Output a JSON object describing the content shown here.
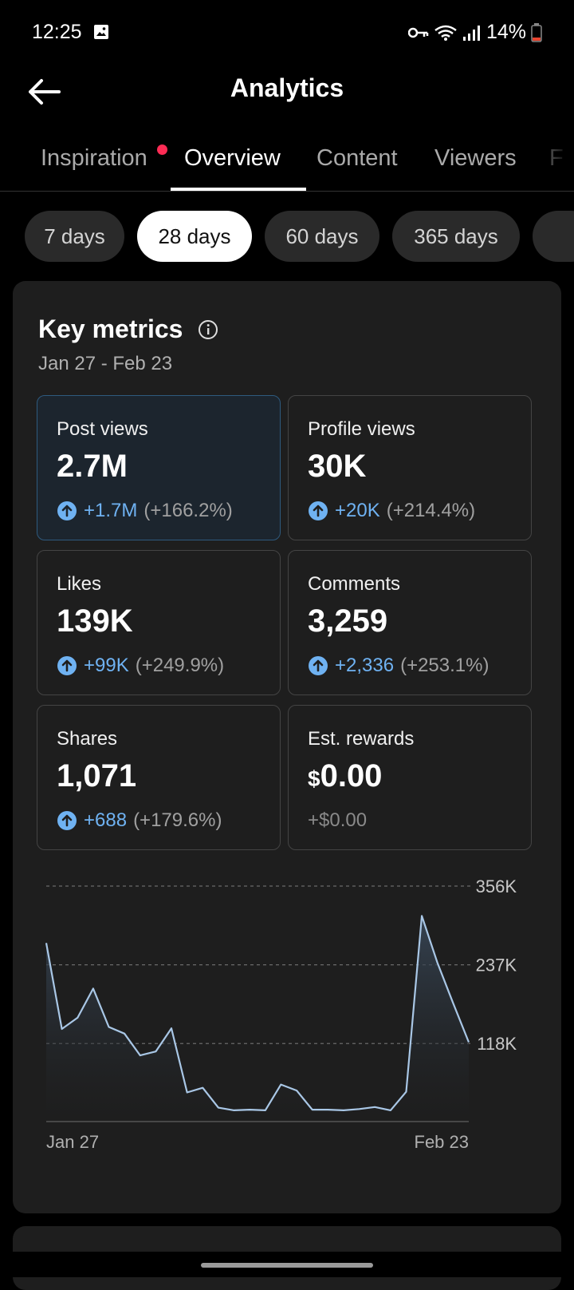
{
  "status": {
    "time": "12:25",
    "battery": "14%"
  },
  "header": {
    "title": "Analytics"
  },
  "tabs": [
    {
      "label": "Inspiration"
    },
    {
      "label": "Overview"
    },
    {
      "label": "Content"
    },
    {
      "label": "Viewers"
    },
    {
      "label": "F"
    }
  ],
  "ranges": [
    "7 days",
    "28 days",
    "60 days",
    "365 days"
  ],
  "key_metrics": {
    "title": "Key metrics",
    "date_range": "Jan 27 - Feb 23",
    "items": [
      {
        "label": "Post views",
        "value": "2.7M",
        "delta": "+1.7M",
        "pct": "(+166.2%)"
      },
      {
        "label": "Profile views",
        "value": "30K",
        "delta": "+20K",
        "pct": "(+214.4%)"
      },
      {
        "label": "Likes",
        "value": "139K",
        "delta": "+99K",
        "pct": "(+249.9%)"
      },
      {
        "label": "Comments",
        "value": "3,259",
        "delta": "+2,336",
        "pct": "(+253.1%)"
      },
      {
        "label": "Shares",
        "value": "1,071",
        "delta": "+688",
        "pct": "(+179.6%)"
      },
      {
        "label": "Est. rewards",
        "value_prefix": "$",
        "value": "0.00",
        "delta": "+$0.00"
      }
    ]
  },
  "colors": {
    "accent": "#6fb2f2",
    "badge": "#fe2c55"
  },
  "chart_data": {
    "type": "area",
    "title": "Post views",
    "x_labels": [
      "Jan 27",
      "Feb 23"
    ],
    "y_ticks": [
      "356K",
      "237K",
      "118K"
    ],
    "ylim": [
      0,
      356000
    ],
    "values": [
      270000,
      140000,
      157000,
      201000,
      143000,
      133000,
      100000,
      106000,
      141000,
      44000,
      51000,
      21000,
      17000,
      18000,
      17000,
      56000,
      47000,
      18000,
      18000,
      17000,
      19000,
      22000,
      17000,
      45000,
      311000,
      240000,
      179000,
      120000
    ]
  }
}
